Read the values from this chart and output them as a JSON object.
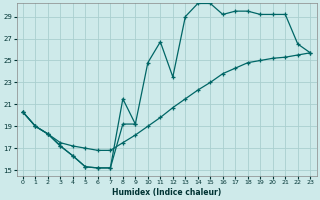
{
  "xlabel": "Humidex (Indice chaleur)",
  "background_color": "#ceeaea",
  "grid_color": "#aacfcf",
  "line_color": "#006666",
  "xlim": [
    -0.5,
    23.5
  ],
  "ylim": [
    14.5,
    30.2
  ],
  "xticks": [
    0,
    1,
    2,
    3,
    4,
    5,
    6,
    7,
    8,
    9,
    10,
    11,
    12,
    13,
    14,
    15,
    16,
    17,
    18,
    19,
    20,
    21,
    22,
    23
  ],
  "yticks": [
    15,
    17,
    19,
    21,
    23,
    25,
    27,
    29
  ],
  "line1_x": [
    0,
    1,
    2,
    3,
    4,
    5,
    6,
    7,
    8,
    9
  ],
  "line1_y": [
    20.3,
    19.0,
    18.3,
    17.2,
    16.3,
    15.3,
    15.2,
    15.2,
    21.5,
    19.2
  ],
  "line2_x": [
    0,
    1,
    2,
    3,
    4,
    5,
    6,
    7,
    8,
    9,
    10,
    11,
    12,
    13,
    14,
    15,
    16,
    17,
    18,
    19,
    20,
    21,
    22,
    23
  ],
  "line2_y": [
    20.3,
    19.0,
    18.3,
    17.2,
    16.3,
    15.3,
    15.2,
    15.2,
    19.2,
    19.2,
    24.8,
    26.7,
    23.5,
    29.0,
    30.2,
    30.2,
    29.2,
    29.5,
    29.5,
    29.2,
    29.2,
    29.2,
    26.5,
    25.7
  ],
  "line3_x": [
    0,
    1,
    2,
    3,
    4,
    5,
    6,
    7,
    8,
    9,
    10,
    11,
    12,
    13,
    14,
    15,
    16,
    17,
    18,
    19,
    20,
    21,
    22,
    23
  ],
  "line3_y": [
    20.3,
    19.0,
    18.3,
    17.5,
    17.2,
    17.0,
    16.8,
    16.8,
    17.5,
    18.2,
    19.0,
    19.8,
    20.7,
    21.5,
    22.3,
    23.0,
    23.8,
    24.3,
    24.8,
    25.0,
    25.2,
    25.3,
    25.5,
    25.7
  ]
}
